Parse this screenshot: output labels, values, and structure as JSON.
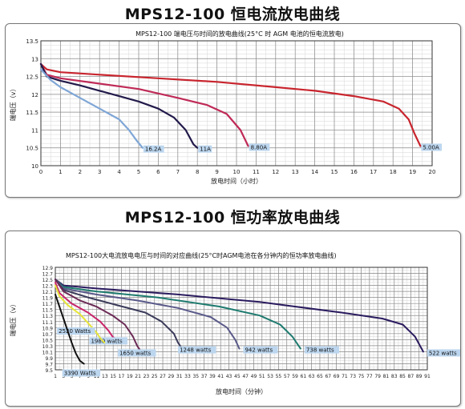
{
  "section1": {
    "title": "MPS12-100 恒电流放电曲线"
  },
  "section2": {
    "title": "MPS12-100 恒功率放电曲线"
  },
  "chart_data": [
    {
      "type": "line",
      "title": "MPS12-100 端电压与时间的放电曲线(25°C 时 AGM 电池的恒电流放电)",
      "xlabel": "放电时间（小时）",
      "ylabel": "端电压（v）",
      "xlim": [
        0,
        20
      ],
      "ylim": [
        10,
        13.5
      ],
      "x_ticks": [
        "0",
        "1",
        "2",
        "3",
        "4",
        "5",
        "6",
        "7",
        "8",
        "9",
        "10",
        "11",
        "12",
        "13",
        "14",
        "15",
        "16",
        "17",
        "18",
        "19",
        "20"
      ],
      "y_ticks": [
        "10",
        "10.5",
        "11",
        "11.5",
        "12",
        "12.5",
        "13",
        "13.5"
      ],
      "grid": true,
      "series": [
        {
          "name": "5.00A",
          "color": "#c8252e",
          "points": [
            [
              0,
              12.85
            ],
            [
              0.3,
              12.7
            ],
            [
              1,
              12.62
            ],
            [
              3,
              12.55
            ],
            [
              6,
              12.45
            ],
            [
              9,
              12.35
            ],
            [
              12,
              12.2
            ],
            [
              14,
              12.1
            ],
            [
              16,
              11.95
            ],
            [
              17.5,
              11.8
            ],
            [
              18.3,
              11.6
            ],
            [
              18.8,
              11.3
            ],
            [
              19.1,
              10.9
            ],
            [
              19.4,
              10.55
            ]
          ]
        },
        {
          "name": "8.80A",
          "color": "#bf2a57",
          "points": [
            [
              0,
              12.85
            ],
            [
              0.3,
              12.55
            ],
            [
              1,
              12.45
            ],
            [
              3,
              12.3
            ],
            [
              5,
              12.15
            ],
            [
              7,
              11.9
            ],
            [
              8.5,
              11.7
            ],
            [
              9.5,
              11.45
            ],
            [
              10.2,
              11.0
            ],
            [
              10.6,
              10.55
            ]
          ]
        },
        {
          "name": "11A",
          "color": "#221a4a",
          "points": [
            [
              0,
              12.85
            ],
            [
              0.3,
              12.5
            ],
            [
              1,
              12.38
            ],
            [
              2,
              12.25
            ],
            [
              3,
              12.1
            ],
            [
              4,
              11.95
            ],
            [
              5,
              11.8
            ],
            [
              6,
              11.6
            ],
            [
              6.8,
              11.35
            ],
            [
              7.4,
              11.0
            ],
            [
              7.8,
              10.6
            ],
            [
              8.0,
              10.5
            ]
          ]
        },
        {
          "name": "16.2A",
          "color": "#7fa6d6",
          "points": [
            [
              0,
              12.7
            ],
            [
              0.5,
              12.4
            ],
            [
              1,
              12.2
            ],
            [
              2,
              11.9
            ],
            [
              3,
              11.6
            ],
            [
              4,
              11.3
            ],
            [
              4.5,
              11.0
            ],
            [
              4.9,
              10.7
            ],
            [
              5.2,
              10.5
            ]
          ]
        }
      ]
    },
    {
      "type": "line",
      "title": "MPS12-100大电流放电电压与时间的对应曲线(25°C时AGM电池在各分钟内的恒功率放电曲线)",
      "xlabel": "放电时间（分钟）",
      "ylabel": "端电压（v）",
      "xlim": [
        0,
        91
      ],
      "ylim": [
        9.5,
        12.9
      ],
      "x_ticks": [
        "1",
        "3",
        "5",
        "7",
        "9",
        "11",
        "13",
        "15",
        "17",
        "19",
        "21",
        "23",
        "25",
        "27",
        "29",
        "31",
        "33",
        "35",
        "37",
        "39",
        "41",
        "43",
        "45",
        "47",
        "49",
        "51",
        "53",
        "55",
        "57",
        "59",
        "61",
        "63",
        "65",
        "67",
        "69",
        "71",
        "73",
        "75",
        "77",
        "79",
        "81",
        "83",
        "85",
        "87",
        "89",
        "91"
      ],
      "y_ticks": [
        "9.5",
        "9.7",
        "9.9",
        "10.1",
        "10.3",
        "10.5",
        "10.7",
        "10.9",
        "11.1",
        "11.3",
        "11.5",
        "11.7",
        "11.9",
        "12.1",
        "12.3",
        "12.5",
        "12.7",
        "12.9"
      ],
      "grid": true,
      "series": [
        {
          "name": "522 watts",
          "color": "#2a1a5e",
          "points": [
            [
              0,
              12.5
            ],
            [
              2,
              12.3
            ],
            [
              10,
              12.2
            ],
            [
              30,
              12.0
            ],
            [
              50,
              11.75
            ],
            [
              70,
              11.4
            ],
            [
              80,
              11.2
            ],
            [
              85,
              11.0
            ],
            [
              88,
              10.6
            ],
            [
              90,
              10.1
            ]
          ]
        },
        {
          "name": "738 watts",
          "color": "#1d7a6e",
          "points": [
            [
              0,
              12.5
            ],
            [
              2,
              12.25
            ],
            [
              10,
              12.1
            ],
            [
              25,
              11.9
            ],
            [
              40,
              11.6
            ],
            [
              50,
              11.3
            ],
            [
              55,
              11.0
            ],
            [
              58,
              10.6
            ],
            [
              60,
              10.2
            ]
          ]
        },
        {
          "name": "942 watts",
          "color": "#5a5a8a",
          "points": [
            [
              0,
              12.5
            ],
            [
              2,
              12.2
            ],
            [
              10,
              12.0
            ],
            [
              20,
              11.8
            ],
            [
              30,
              11.55
            ],
            [
              38,
              11.25
            ],
            [
              42,
              10.9
            ],
            [
              44,
              10.5
            ],
            [
              45,
              10.2
            ]
          ]
        },
        {
          "name": "1248 watts",
          "color": "#3a3a5a",
          "points": [
            [
              0,
              12.5
            ],
            [
              2,
              12.15
            ],
            [
              8,
              11.9
            ],
            [
              15,
              11.65
            ],
            [
              22,
              11.4
            ],
            [
              26,
              11.1
            ],
            [
              29,
              10.7
            ],
            [
              30,
              10.4
            ],
            [
              31,
              10.2
            ]
          ]
        },
        {
          "name": "1650 watts",
          "color": "#6a2a55",
          "points": [
            [
              0,
              12.5
            ],
            [
              2,
              12.1
            ],
            [
              6,
              11.8
            ],
            [
              10,
              11.6
            ],
            [
              14,
              11.3
            ],
            [
              17,
              11.0
            ],
            [
              19,
              10.6
            ],
            [
              20,
              10.3
            ],
            [
              21,
              10.1
            ]
          ]
        },
        {
          "name": "1980 watts",
          "color": "#c8256a",
          "points": [
            [
              0,
              12.4
            ],
            [
              1,
              12.05
            ],
            [
              4,
              11.7
            ],
            [
              8,
              11.4
            ],
            [
              11,
              11.1
            ],
            [
              13,
              10.8
            ],
            [
              14,
              10.6
            ],
            [
              15,
              10.5
            ]
          ]
        },
        {
          "name": "2520 Watts",
          "color": "#e6e53a",
          "points": [
            [
              0,
              12.3
            ],
            [
              1,
              11.95
            ],
            [
              3,
              11.65
            ],
            [
              6,
              11.35
            ],
            [
              8,
              11.05
            ],
            [
              10,
              10.75
            ],
            [
              11,
              10.55
            ],
            [
              12,
              10.4
            ]
          ]
        },
        {
          "name": "3390 Watts",
          "color": "#111111",
          "points": [
            [
              0,
              12.0
            ],
            [
              1,
              11.6
            ],
            [
              2,
              11.2
            ],
            [
              3,
              10.8
            ],
            [
              4,
              10.4
            ],
            [
              5,
              10.05
            ],
            [
              6,
              9.8
            ],
            [
              7,
              9.7
            ]
          ]
        }
      ]
    }
  ]
}
